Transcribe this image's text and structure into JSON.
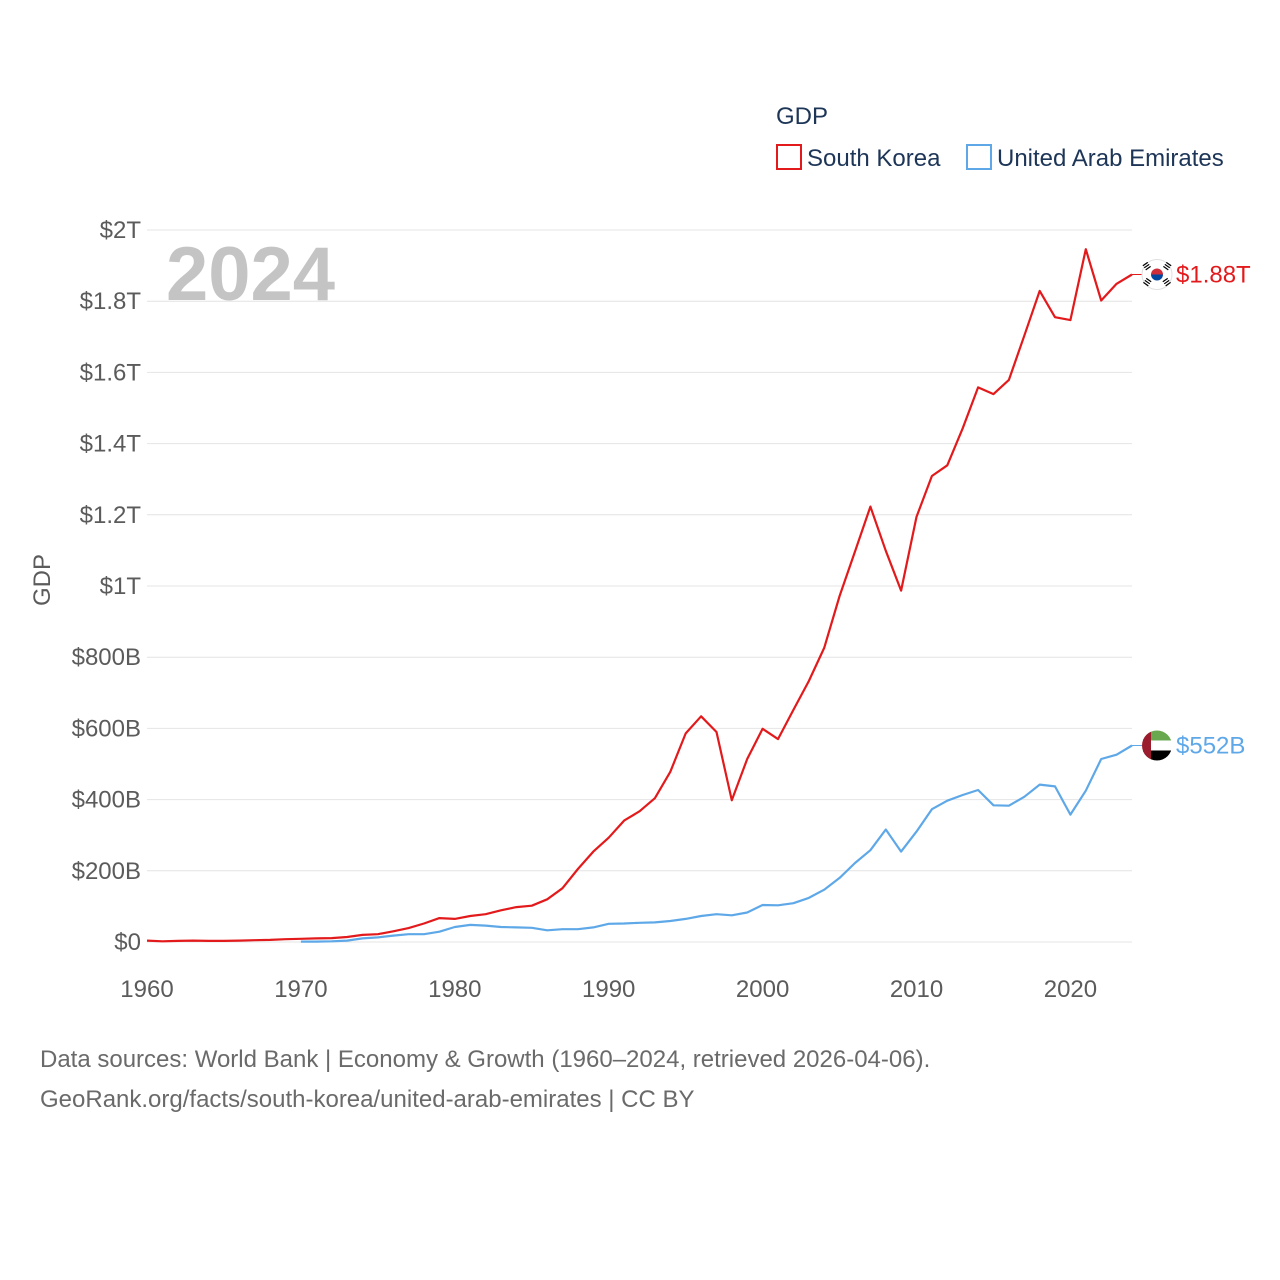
{
  "chart_data": {
    "type": "line",
    "title": "GDP",
    "ylabel": "GDP",
    "xlabel": "",
    "year_label": "2024",
    "xlim": [
      1960,
      2024
    ],
    "ylim": [
      0,
      2000
    ],
    "x_ticks": [
      1960,
      1970,
      1980,
      1990,
      2000,
      2010,
      2020
    ],
    "y_ticks": [
      {
        "value": 0,
        "label": "$0"
      },
      {
        "value": 200,
        "label": "$200B"
      },
      {
        "value": 400,
        "label": "$400B"
      },
      {
        "value": 600,
        "label": "$600B"
      },
      {
        "value": 800,
        "label": "$800B"
      },
      {
        "value": 1000,
        "label": "$1T"
      },
      {
        "value": 1200,
        "label": "$1.2T"
      },
      {
        "value": 1400,
        "label": "$1.4T"
      },
      {
        "value": 1600,
        "label": "$1.6T"
      },
      {
        "value": 1800,
        "label": "$1.8T"
      },
      {
        "value": 2000,
        "label": "$2T"
      }
    ],
    "units": "billions USD",
    "legend_position": "top-right",
    "grid": true,
    "series": [
      {
        "name": "South Korea",
        "color": "#e31a1c",
        "end_label": "$1.88T",
        "flag": "south-korea-flag-icon",
        "x": [
          1960,
          1961,
          1962,
          1963,
          1964,
          1965,
          1966,
          1967,
          1968,
          1969,
          1970,
          1971,
          1972,
          1973,
          1974,
          1975,
          1976,
          1977,
          1978,
          1979,
          1980,
          1981,
          1982,
          1983,
          1984,
          1985,
          1986,
          1987,
          1988,
          1989,
          1990,
          1991,
          1992,
          1993,
          1994,
          1995,
          1996,
          1997,
          1998,
          1999,
          2000,
          2001,
          2002,
          2003,
          2004,
          2005,
          2006,
          2007,
          2008,
          2009,
          2010,
          2011,
          2012,
          2013,
          2014,
          2015,
          2016,
          2017,
          2018,
          2019,
          2020,
          2021,
          2022,
          2023,
          2024
        ],
        "values": [
          4,
          2,
          3,
          4,
          3,
          3,
          4,
          5,
          6,
          8,
          9,
          10,
          11,
          14,
          20,
          22,
          30,
          39,
          52,
          67,
          65,
          73,
          78,
          89,
          98,
          102,
          120,
          151,
          205,
          254,
          293,
          341,
          367,
          404,
          478,
          586,
          634,
          590,
          398,
          514,
          599,
          570,
          652,
          733,
          826,
          972,
          1097,
          1223,
          1099,
          987,
          1194,
          1309,
          1339,
          1443,
          1558,
          1539,
          1579,
          1703,
          1829,
          1755,
          1747,
          1946,
          1802,
          1849,
          1875
        ]
      },
      {
        "name": "United Arab Emirates",
        "color": "#5ea8e8",
        "end_label": "$552B",
        "flag": "uae-flag-icon",
        "x": [
          1970,
          1971,
          1972,
          1973,
          1974,
          1975,
          1976,
          1977,
          1978,
          1979,
          1980,
          1981,
          1982,
          1983,
          1984,
          1985,
          1986,
          1987,
          1988,
          1989,
          1990,
          1991,
          1992,
          1993,
          1994,
          1995,
          1996,
          1997,
          1998,
          1999,
          2000,
          2001,
          2002,
          2003,
          2004,
          2005,
          2006,
          2007,
          2008,
          2009,
          2010,
          2011,
          2012,
          2013,
          2014,
          2015,
          2016,
          2017,
          2018,
          2019,
          2020,
          2021,
          2022,
          2023,
          2024
        ],
        "values": [
          1,
          1,
          2,
          4,
          10,
          13,
          18,
          22,
          22,
          29,
          42,
          48,
          46,
          42,
          41,
          40,
          33,
          36,
          36,
          41,
          51,
          52,
          54,
          55,
          59,
          65,
          73,
          78,
          75,
          83,
          104,
          103,
          109,
          124,
          147,
          180,
          222,
          258,
          316,
          254,
          310,
          373,
          397,
          413,
          427,
          384,
          383,
          408,
          442,
          437,
          358,
          425,
          514,
          526,
          552
        ]
      }
    ]
  },
  "legend": {
    "title": "GDP",
    "items": [
      "South Korea",
      "United Arab Emirates"
    ]
  },
  "footer": {
    "line1": "Data sources: World Bank | Economy & Growth (1960–2024, retrieved 2026-04-06).",
    "line2": "GeoRank.org/facts/south-korea/united-arab-emirates | CC BY"
  }
}
